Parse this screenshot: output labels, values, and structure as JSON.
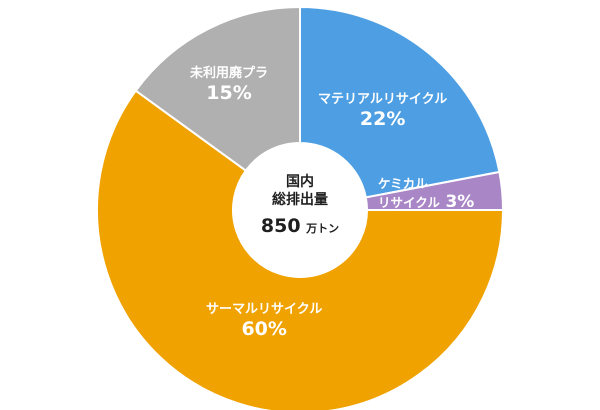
{
  "chart_data": {
    "type": "pie",
    "donut": true,
    "categories": [
      "マテリアルリサイクル",
      "ケミカルリサイクル",
      "サーマルリサイクル",
      "未利用廃プラ"
    ],
    "values": [
      22,
      3,
      60,
      15
    ],
    "colors": [
      "#4d9ee3",
      "#a986c6",
      "#f0a200",
      "#b0b0b0"
    ],
    "title": "",
    "legend": "none",
    "labels": {
      "material": {
        "name": "マテリアルリサイクル",
        "pct": "22%"
      },
      "chemical": {
        "name_line1": "ケミカル",
        "name_line2": "リサイクル",
        "pct": "3%"
      },
      "thermal": {
        "name": "サーマルリサイクル",
        "pct": "60%"
      },
      "unused": {
        "name": "未利用廃プラ",
        "pct": "15%"
      }
    },
    "center": {
      "line1": "国内",
      "line2": "総排出量",
      "value": "850",
      "unit": "万トン"
    }
  }
}
